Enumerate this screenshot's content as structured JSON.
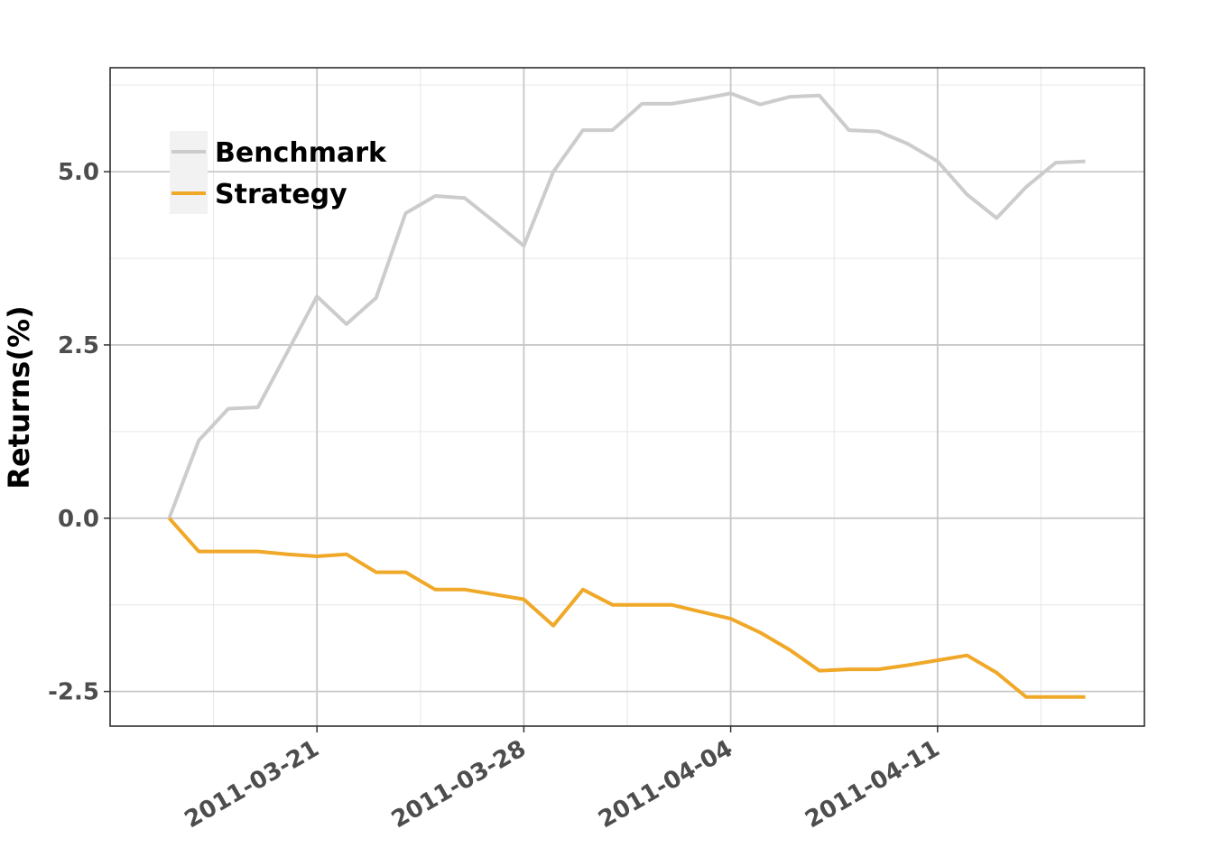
{
  "chart_data": {
    "type": "line",
    "title": "",
    "xlabel": "",
    "ylabel": "Returns(%)",
    "x_type": "date",
    "x_ticks": [
      "2011-03-21",
      "2011-03-28",
      "2011-04-04",
      "2011-04-11"
    ],
    "y_ticks": [
      -2.5,
      0.0,
      2.5,
      5.0
    ],
    "y_tick_labels": [
      "-2.5",
      "0.0",
      "2.5",
      "5.0"
    ],
    "xlim": [
      "2011-03-14",
      "2011-04-18"
    ],
    "ylim": [
      -3.0,
      6.5
    ],
    "grid": true,
    "legend_position": "top-left",
    "x": [
      "2011-03-16",
      "2011-03-17",
      "2011-03-18",
      "2011-03-19",
      "2011-03-20",
      "2011-03-21",
      "2011-03-22",
      "2011-03-23",
      "2011-03-24",
      "2011-03-25",
      "2011-03-26",
      "2011-03-27",
      "2011-03-28",
      "2011-03-29",
      "2011-03-30",
      "2011-03-31",
      "2011-04-01",
      "2011-04-02",
      "2011-04-03",
      "2011-04-04",
      "2011-04-05",
      "2011-04-06",
      "2011-04-07",
      "2011-04-08",
      "2011-04-09",
      "2011-04-10",
      "2011-04-11",
      "2011-04-12",
      "2011-04-13",
      "2011-04-14",
      "2011-04-15",
      "2011-04-16"
    ],
    "series": [
      {
        "name": "Benchmark",
        "color": "#cccccc",
        "values": [
          0.0,
          1.12,
          1.58,
          1.6,
          2.4,
          3.2,
          2.8,
          3.18,
          4.4,
          4.65,
          4.62,
          4.28,
          3.93,
          5.0,
          5.6,
          5.6,
          5.98,
          5.98,
          6.05,
          6.13,
          5.97,
          6.08,
          6.1,
          5.6,
          5.58,
          5.4,
          5.15,
          4.67,
          4.33,
          4.78,
          5.13,
          5.15
        ]
      },
      {
        "name": "Strategy",
        "color": "#f0a828",
        "values": [
          0.0,
          -0.48,
          -0.48,
          -0.48,
          -0.52,
          -0.55,
          -0.52,
          -0.78,
          -0.78,
          -1.03,
          -1.03,
          -1.1,
          -1.17,
          -1.55,
          -1.03,
          -1.25,
          -1.25,
          -1.25,
          -1.35,
          -1.45,
          -1.65,
          -1.9,
          -2.2,
          -2.18,
          -2.18,
          -2.12,
          -2.05,
          -1.98,
          -2.23,
          -2.58,
          -2.58,
          -2.58
        ]
      }
    ]
  }
}
